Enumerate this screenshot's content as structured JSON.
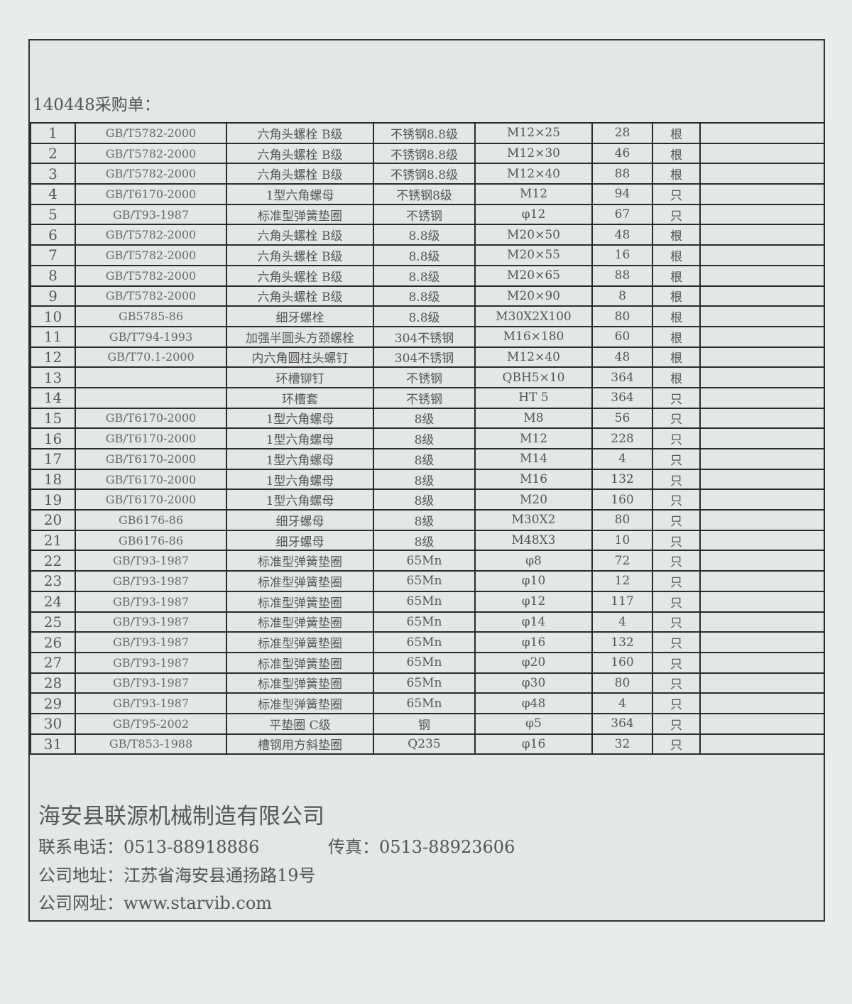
{
  "title": "140448采购单：",
  "rows": [
    [
      "1",
      "GB/T5782-2000",
      "六角头螺栓 B级",
      "不锈钢8.8级",
      "M12×25",
      "28",
      "根"
    ],
    [
      "2",
      "GB/T5782-2000",
      "六角头螺栓 B级",
      "不锈钢8.8级",
      "M12×30",
      "46",
      "根"
    ],
    [
      "3",
      "GB/T5782-2000",
      "六角头螺栓 B级",
      "不锈钢8.8级",
      "M12×40",
      "88",
      "根"
    ],
    [
      "4",
      "GB/T6170-2000",
      "1型六角螺母",
      "不锈钢8级",
      "M12",
      "94",
      "只"
    ],
    [
      "5",
      "GB/T93-1987",
      "标准型弹簧垫圈",
      "不锈钢",
      "φ12",
      "67",
      "只"
    ],
    [
      "6",
      "GB/T5782-2000",
      "六角头螺栓 B级",
      "8.8级",
      "M20×50",
      "48",
      "根"
    ],
    [
      "7",
      "GB/T5782-2000",
      "六角头螺栓 B级",
      "8.8级",
      "M20×55",
      "16",
      "根"
    ],
    [
      "8",
      "GB/T5782-2000",
      "六角头螺栓 B级",
      "8.8级",
      "M20×65",
      "88",
      "根"
    ],
    [
      "9",
      "GB/T5782-2000",
      "六角头螺栓 B级",
      "8.8级",
      "M20×90",
      "8",
      "根"
    ],
    [
      "10",
      "GB5785-86",
      "细牙螺栓",
      "8.8级",
      "M30X2X100",
      "80",
      "根"
    ],
    [
      "11",
      "GB/T794-1993",
      "加强半圆头方颈螺栓",
      "304不锈钢",
      "M16×180",
      "60",
      "根"
    ],
    [
      "12",
      "GB/T70.1-2000",
      "内六角圆柱头螺钉",
      "304不锈钢",
      "M12×40",
      "48",
      "根"
    ],
    [
      "13",
      "",
      "环槽铆钉",
      "不锈钢",
      "QBH5×10",
      "364",
      "根"
    ],
    [
      "14",
      "",
      "环槽套",
      "不锈钢",
      "HT 5",
      "364",
      "只"
    ],
    [
      "15",
      "GB/T6170-2000",
      "1型六角螺母",
      "8级",
      "M8",
      "56",
      "只"
    ],
    [
      "16",
      "GB/T6170-2000",
      "1型六角螺母",
      "8级",
      "M12",
      "228",
      "只"
    ],
    [
      "17",
      "GB/T6170-2000",
      "1型六角螺母",
      "8级",
      "M14",
      "4",
      "只"
    ],
    [
      "18",
      "GB/T6170-2000",
      "1型六角螺母",
      "8级",
      "M16",
      "132",
      "只"
    ],
    [
      "19",
      "GB/T6170-2000",
      "1型六角螺母",
      "8级",
      "M20",
      "160",
      "只"
    ],
    [
      "20",
      "GB6176-86",
      "细牙螺母",
      "8级",
      "M30X2",
      "80",
      "只"
    ],
    [
      "21",
      "GB6176-86",
      "细牙螺母",
      "8级",
      "M48X3",
      "10",
      "只"
    ],
    [
      "22",
      "GB/T93-1987",
      "标准型弹簧垫圈",
      "65Mn",
      "φ8",
      "72",
      "只"
    ],
    [
      "23",
      "GB/T93-1987",
      "标准型弹簧垫圈",
      "65Mn",
      "φ10",
      "12",
      "只"
    ],
    [
      "24",
      "GB/T93-1987",
      "标准型弹簧垫圈",
      "65Mn",
      "φ12",
      "117",
      "只"
    ],
    [
      "25",
      "GB/T93-1987",
      "标准型弹簧垫圈",
      "65Mn",
      "φ14",
      "4",
      "只"
    ],
    [
      "26",
      "GB/T93-1987",
      "标准型弹簧垫圈",
      "65Mn",
      "φ16",
      "132",
      "只"
    ],
    [
      "27",
      "GB/T93-1987",
      "标准型弹簧垫圈",
      "65Mn",
      "φ20",
      "160",
      "只"
    ],
    [
      "28",
      "GB/T93-1987",
      "标准型弹簧垫圈",
      "65Mn",
      "φ30",
      "80",
      "只"
    ],
    [
      "29",
      "GB/T93-1987",
      "标准型弹簧垫圈",
      "65Mn",
      "φ48",
      "4",
      "只"
    ],
    [
      "30",
      "GB/T95-2002",
      "平垫圈 C级",
      "钢",
      "φ5",
      "364",
      "只"
    ],
    [
      "31",
      "GB/T853-1988",
      "槽钢用方斜垫圈",
      "Q235",
      "φ16",
      "32",
      "只"
    ]
  ],
  "footer": {
    "company": "海安县联源机械制造有限公司",
    "phone": "联系电话：0513-88918886",
    "fax": "传真：0513-88923606",
    "address": "公司地址：江苏省海安县通扬路19号",
    "website": "公司网址：www.starvib.com"
  }
}
